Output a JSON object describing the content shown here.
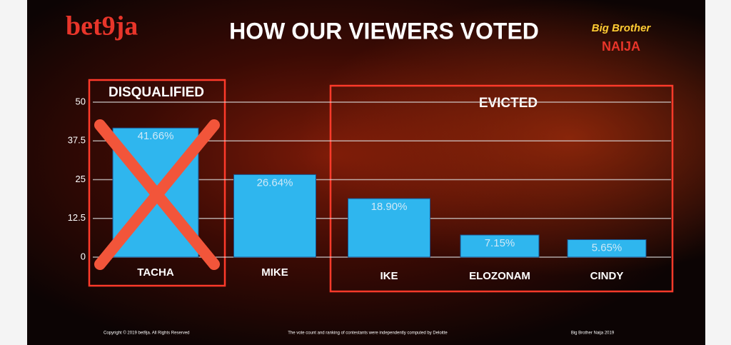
{
  "brand": "bet9ja",
  "show_logo": [
    "Big Brother",
    "NAIJA"
  ],
  "chart_data": {
    "type": "bar",
    "title": "HOW OUR VIEWERS VOTED",
    "categories": [
      "TACHA",
      "MIKE",
      "IKE",
      "ELOZONAM",
      "CINDY"
    ],
    "values": [
      41.66,
      26.64,
      18.9,
      7.15,
      5.65
    ],
    "value_labels": [
      "41.66%",
      "26.64%",
      "18.90%",
      "7.15%",
      "5.65%"
    ],
    "color": "#2fb6ee",
    "ylim": [
      0,
      50
    ],
    "yticks": [
      0,
      12.5,
      25,
      37.5,
      50
    ],
    "grid": true,
    "annotations": [
      "DISQUALIFIED",
      "EVICTED"
    ]
  },
  "footer": [
    "Copyright © 2019 bet9ja. All Rights Reserved",
    "The vote count and ranking of contestants were independently computed by Deloitte",
    "Big Brother Naija 2019"
  ]
}
